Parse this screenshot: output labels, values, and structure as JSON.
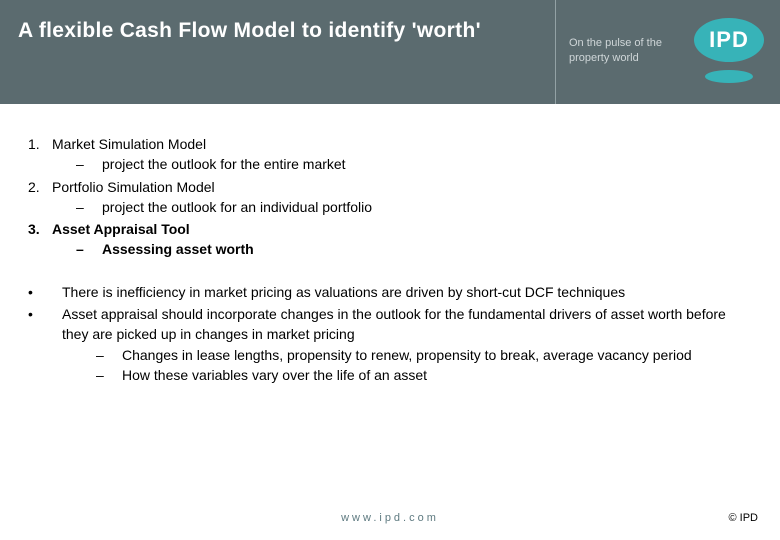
{
  "header": {
    "title": "A flexible Cash Flow Model to identify 'worth'",
    "tagline": "On the pulse of the property world",
    "logo_text": "IPD",
    "bg_color": "#5b6b6f",
    "accent_color": "#37b3b8"
  },
  "list": [
    {
      "num": "1.",
      "text": "Market Simulation Model",
      "bold": false,
      "sub": {
        "dash": "–",
        "text": "project the outlook for the entire market",
        "bold": false
      }
    },
    {
      "num": "2.",
      "text": "Portfolio Simulation Model",
      "bold": false,
      "sub": {
        "dash": "–",
        "text": "project the outlook for an individual portfolio",
        "bold": false
      }
    },
    {
      "num": "3.",
      "text": "Asset Appraisal Tool",
      "bold": true,
      "sub": {
        "dash": "–",
        "text": "Assessing asset worth",
        "bold": true
      }
    }
  ],
  "bullets": [
    {
      "marker": "•",
      "text": "There is inefficiency in market pricing as valuations are driven by short-cut DCF techniques",
      "subs": []
    },
    {
      "marker": "•",
      "text": "Asset appraisal should incorporate changes in the outlook for the fundamental drivers of asset worth before they are picked up in changes in market pricing",
      "subs": [
        {
          "dash": "–",
          "text": "Changes in lease lengths, propensity to renew, propensity to break, average vacancy period"
        },
        {
          "dash": "–",
          "text": "How these variables vary over the life of an asset"
        }
      ]
    }
  ],
  "footer": {
    "url": "www.ipd.com",
    "copyright": "© IPD"
  }
}
